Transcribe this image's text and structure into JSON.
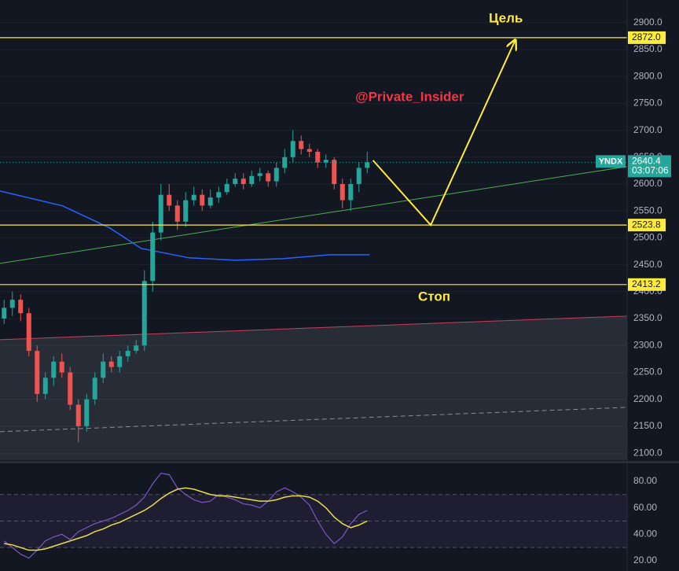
{
  "chart_data": [
    {
      "type": "candlestick",
      "symbol": "YNDX",
      "open": [
        2350,
        2370,
        2385,
        2360,
        2290,
        2210,
        2240,
        2270,
        2250,
        2190,
        2150,
        2200,
        2240,
        2270,
        2260,
        2280,
        2290,
        2300,
        2420,
        2510,
        2580,
        2560,
        2530,
        2570,
        2580,
        2560,
        2575,
        2585,
        2600,
        2610,
        2600,
        2615,
        2620,
        2605,
        2630,
        2650,
        2680,
        2665,
        2660,
        2640,
        2645,
        2600,
        2570,
        2600,
        2630
      ],
      "high": [
        2385,
        2400,
        2395,
        2370,
        2300,
        2250,
        2280,
        2285,
        2260,
        2200,
        2210,
        2250,
        2285,
        2280,
        2290,
        2300,
        2310,
        2440,
        2530,
        2600,
        2600,
        2570,
        2585,
        2595,
        2590,
        2590,
        2595,
        2610,
        2620,
        2620,
        2625,
        2630,
        2625,
        2640,
        2665,
        2700,
        2690,
        2675,
        2665,
        2655,
        2650,
        2610,
        2610,
        2640,
        2660
      ],
      "low": [
        2340,
        2355,
        2345,
        2280,
        2195,
        2200,
        2225,
        2240,
        2180,
        2120,
        2140,
        2190,
        2230,
        2250,
        2250,
        2270,
        2285,
        2290,
        2400,
        2495,
        2550,
        2515,
        2520,
        2560,
        2550,
        2555,
        2565,
        2580,
        2595,
        2590,
        2595,
        2605,
        2595,
        2595,
        2620,
        2640,
        2655,
        2650,
        2630,
        2630,
        2590,
        2555,
        2550,
        2585,
        2620
      ],
      "close": [
        2370,
        2385,
        2360,
        2290,
        2210,
        2240,
        2270,
        2250,
        2190,
        2150,
        2200,
        2240,
        2270,
        2260,
        2280,
        2290,
        2300,
        2420,
        2510,
        2580,
        2560,
        2530,
        2570,
        2580,
        2560,
        2575,
        2585,
        2600,
        2610,
        2600,
        2615,
        2620,
        2605,
        2630,
        2650,
        2680,
        2665,
        2660,
        2640,
        2645,
        2600,
        2570,
        2600,
        2630,
        2640.4
      ],
      "up_color": "#26a69a",
      "down_color": "#ef5350",
      "xlim": [
        0,
        76
      ],
      "ylim": [
        2087,
        2942
      ],
      "yticks": [
        {
          "value": 2100,
          "label": "2100.0"
        },
        {
          "value": 2150,
          "label": "2150.0"
        },
        {
          "value": 2200,
          "label": "2200.0"
        },
        {
          "value": 2250,
          "label": "2250.0"
        },
        {
          "value": 2300,
          "label": "2300.0"
        },
        {
          "value": 2350,
          "label": "2350.0"
        },
        {
          "value": 2400,
          "label": "2400.0"
        },
        {
          "value": 2450,
          "label": "2450.0"
        },
        {
          "value": 2500,
          "label": "2500.0"
        },
        {
          "value": 2550,
          "label": "2550.0"
        },
        {
          "value": 2600,
          "label": "2600.0"
        },
        {
          "value": 2650,
          "label": "2650.0"
        },
        {
          "value": 2700,
          "label": "2700.0"
        },
        {
          "value": 2750,
          "label": "2750.0"
        },
        {
          "value": 2800,
          "label": "2800.0"
        },
        {
          "value": 2850,
          "label": "2850.0"
        },
        {
          "value": 2900,
          "label": "2900.0"
        }
      ],
      "grid": true,
      "last_price": 2640.4,
      "countdown": "03:07:06",
      "price_lines": [
        {
          "value": 2872,
          "label": "2872.0"
        },
        {
          "value": 2523.8,
          "label": "2523.8"
        },
        {
          "value": 2413.2,
          "label": "2413.2"
        }
      ],
      "price_line_color": "#ffeb3b",
      "target_label": "Цель",
      "watermark": "@Private_Insider",
      "stop_label": "Стоп",
      "trendlines": [
        {
          "color": "#4caf50",
          "dashed": false,
          "fill": false,
          "x": [
            0,
            76
          ],
          "y": [
            2452.6,
            2632.5
          ]
        },
        {
          "color": "#c2425a",
          "dashed": false,
          "fill": true,
          "x": [
            0,
            76
          ],
          "y": [
            2310.8,
            2354.7
          ]
        },
        {
          "color": "#8a8e99",
          "dashed": true,
          "fill": false,
          "x": [
            0,
            76
          ],
          "y": [
            2139.8,
            2185
          ]
        }
      ],
      "moving_average": {
        "color": "#2962ff",
        "x": [
          0,
          7.6,
          13.3,
          17.1,
          22.9,
          28.6,
          34.3,
          40,
          44.8
        ],
        "values": [
          2587.1,
          2559.4,
          2518.4,
          2480.4,
          2462.9,
          2458.5,
          2461.4,
          2468.7,
          2468.7
        ]
      },
      "forecast": {
        "color": "#ffeb3b",
        "x": [
          45.2,
          52.2,
          62.4
        ],
        "y": [
          2644,
          2523.8,
          2866
        ]
      }
    },
    {
      "type": "line",
      "xlim": [
        0,
        76
      ],
      "ylim": [
        12.3,
        93
      ],
      "yticks": [
        {
          "value": 20,
          "label": "20.00"
        },
        {
          "value": 40,
          "label": "40.00"
        },
        {
          "value": 60,
          "label": "60.00"
        },
        {
          "value": 80,
          "label": "80.00"
        }
      ],
      "bands": [
        30,
        50,
        70
      ],
      "band_fill": "#7e57c2",
      "series": [
        {
          "color": "#7e57c2",
          "values": [
            35,
            30,
            25,
            22,
            28,
            35,
            38,
            40,
            36,
            42,
            45,
            48,
            50,
            52,
            55,
            58,
            62,
            68,
            78,
            86,
            85,
            75,
            70,
            66,
            64,
            65,
            70,
            68,
            66,
            63,
            62,
            60,
            65,
            72,
            75,
            72,
            68,
            62,
            50,
            40,
            33,
            38,
            48,
            55,
            58
          ]
        },
        {
          "color": "#e8dc4a",
          "values": [
            33,
            32,
            30,
            28,
            28,
            29,
            31,
            33,
            35,
            37,
            39,
            42,
            44,
            47,
            49,
            52,
            55,
            58,
            62,
            67,
            71,
            74,
            75,
            74,
            72,
            70,
            69,
            69,
            68,
            67,
            66,
            65,
            65,
            66,
            68,
            69,
            69,
            68,
            65,
            60,
            53,
            48,
            45,
            47,
            50
          ]
        }
      ]
    }
  ]
}
